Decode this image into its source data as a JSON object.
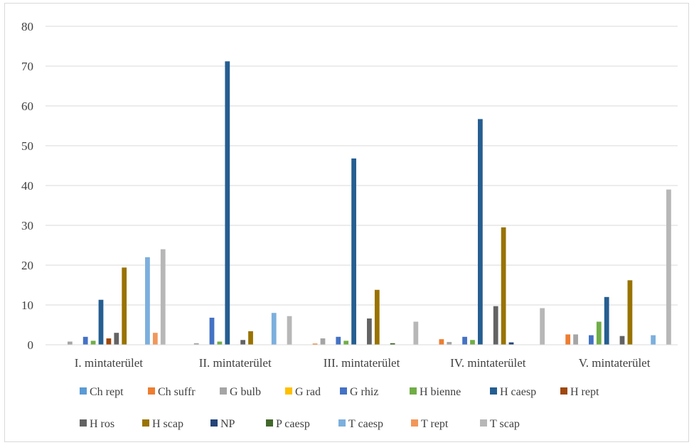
{
  "chart_data": {
    "type": "bar",
    "title": "",
    "xlabel": "",
    "ylabel": "",
    "ylim": [
      0,
      80
    ],
    "yticks": [
      0,
      10,
      20,
      30,
      40,
      50,
      60,
      70,
      80
    ],
    "grid": true,
    "legend_position": "bottom",
    "categories": [
      "I. mintaterület",
      "II. mintaterület",
      "III. mintaterület",
      "IV. mintaterület",
      "V. mintaterület"
    ],
    "series": [
      {
        "name": "Ch rept",
        "color": "#5b9bd5",
        "values": [
          0,
          0,
          0,
          0,
          0
        ]
      },
      {
        "name": "Ch suffr",
        "color": "#ed7d31",
        "values": [
          0,
          0,
          0.3,
          1.4,
          2.6
        ]
      },
      {
        "name": "G bulb",
        "color": "#a5a5a5",
        "values": [
          0.8,
          0.4,
          1.6,
          0.7,
          2.6
        ]
      },
      {
        "name": "G rad",
        "color": "#ffc000",
        "values": [
          0,
          0,
          0,
          0,
          0
        ]
      },
      {
        "name": "G rhiz",
        "color": "#4472c4",
        "values": [
          2,
          6.8,
          2,
          2,
          2.4
        ]
      },
      {
        "name": "H bienne",
        "color": "#70ad47",
        "values": [
          1,
          0.8,
          1,
          1.2,
          5.8
        ]
      },
      {
        "name": "H caesp",
        "color": "#255e91",
        "values": [
          11.3,
          71.2,
          46.8,
          56.7,
          12
        ]
      },
      {
        "name": "H rept",
        "color": "#9e480e",
        "values": [
          1.6,
          0,
          0,
          0,
          0
        ]
      },
      {
        "name": "H ros",
        "color": "#636363",
        "values": [
          3,
          1.2,
          6.6,
          9.7,
          2.2
        ]
      },
      {
        "name": "H scap",
        "color": "#997300",
        "values": [
          19.4,
          3.4,
          13.8,
          29.5,
          16.2
        ]
      },
      {
        "name": "NP",
        "color": "#264478",
        "values": [
          0,
          0,
          0,
          0.6,
          0
        ]
      },
      {
        "name": "P caesp",
        "color": "#43682b",
        "values": [
          0,
          0,
          0.4,
          0,
          0
        ]
      },
      {
        "name": "T caesp",
        "color": "#7cafdd",
        "values": [
          22,
          8,
          0,
          0,
          2.4
        ]
      },
      {
        "name": "T rept",
        "color": "#f1975a",
        "values": [
          3,
          0,
          0,
          0,
          0
        ]
      },
      {
        "name": "T scap",
        "color": "#b7b7b7",
        "values": [
          24,
          7.2,
          5.8,
          9.2,
          39
        ]
      }
    ]
  }
}
